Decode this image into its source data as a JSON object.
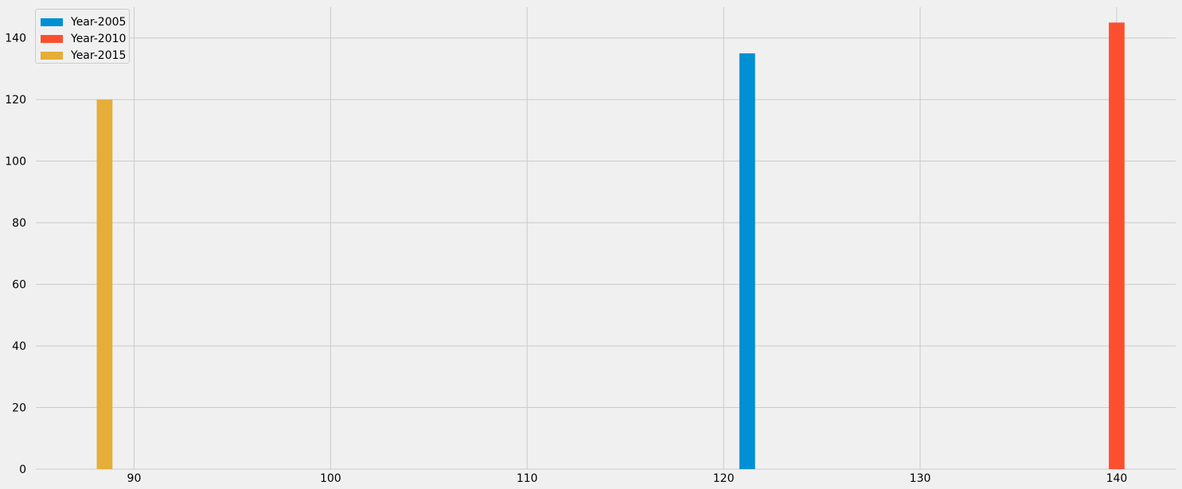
{
  "chart_data": {
    "type": "bar",
    "title": "",
    "xlabel": "",
    "ylabel": "",
    "xlim": [
      85,
      143
    ],
    "ylim": [
      0,
      150
    ],
    "x_ticks": [
      90,
      100,
      110,
      120,
      130,
      140
    ],
    "y_ticks": [
      0,
      20,
      40,
      60,
      80,
      100,
      120,
      140
    ],
    "grid": true,
    "legend_position": "top-left",
    "bar_width": 0.8,
    "series": [
      {
        "name": "Year-2005",
        "color": "#008fd5",
        "x": [
          121.2
        ],
        "values": [
          135
        ]
      },
      {
        "name": "Year-2010",
        "color": "#fc4f30",
        "x": [
          140
        ],
        "values": [
          145
        ]
      },
      {
        "name": "Year-2015",
        "color": "#e5ae38",
        "x": [
          88.5
        ],
        "values": [
          120
        ]
      }
    ]
  }
}
